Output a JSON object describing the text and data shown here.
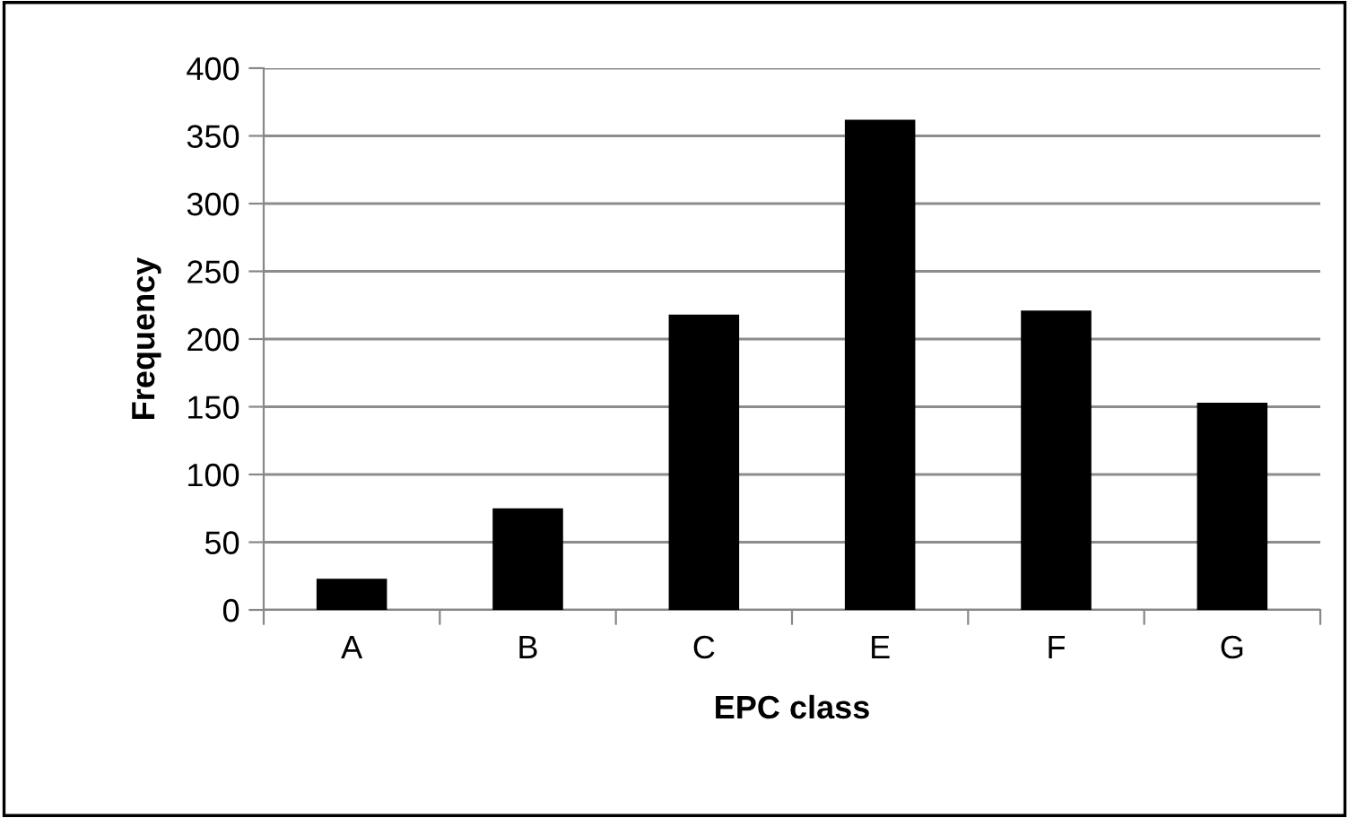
{
  "chart_data": {
    "type": "bar",
    "xlabel": "EPC class",
    "ylabel": "Frequency",
    "categories": [
      "A",
      "B",
      "C",
      "E",
      "F",
      "G"
    ],
    "values": [
      23,
      75,
      218,
      362,
      221,
      153
    ],
    "color": "#000000",
    "ylim": [
      0,
      400
    ],
    "yticks": [
      0,
      50,
      100,
      150,
      200,
      250,
      300,
      350,
      400
    ],
    "grid": "y",
    "legend": false
  }
}
